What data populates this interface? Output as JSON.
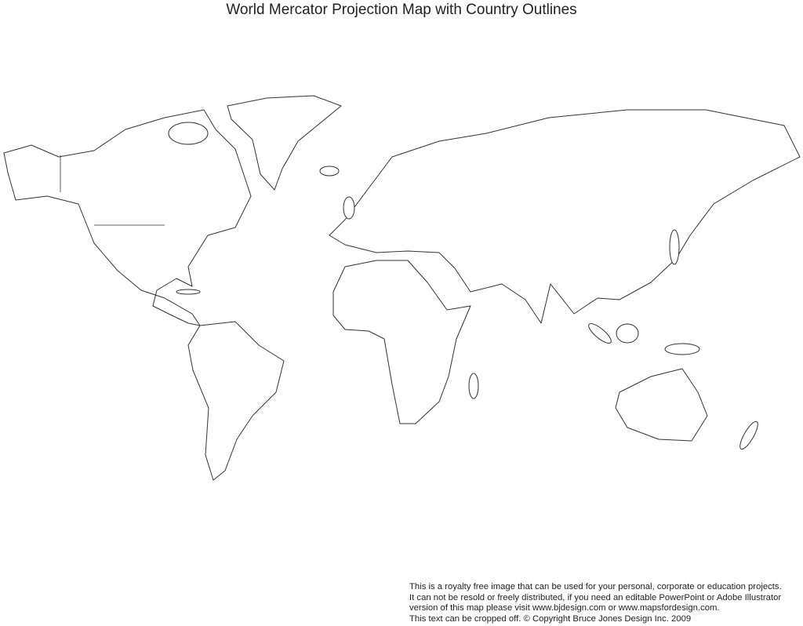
{
  "title": "World Mercator Projection Map with Country Outlines",
  "notice": [
    "This is a royalty free image that can be used for your personal, corporate or education projects.",
    "It can not be resold or freely distributed, if you need an editable PowerPoint or Adobe Illustrator",
    "version of this map please visit www.bjdesign.com or www.mapsfordesign.com.",
    "This text can be cropped off.  © Copyright Bruce Jones Design Inc. 2009"
  ],
  "map": {
    "projection": "Mercator",
    "style": "country outlines",
    "stroke_color": "#333333",
    "fill_color": "#ffffff"
  }
}
